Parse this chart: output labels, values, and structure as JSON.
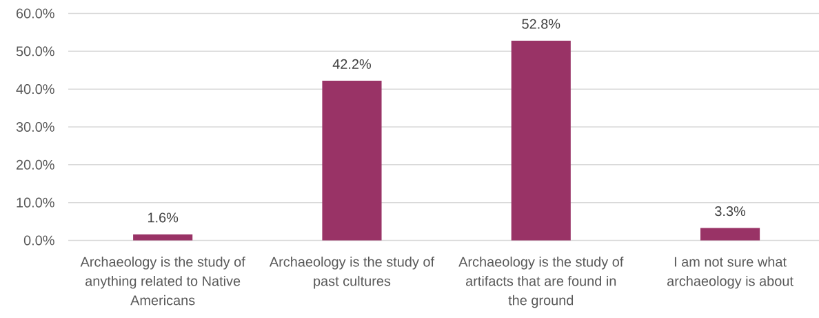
{
  "chart_data": {
    "type": "bar",
    "categories": [
      "Archaeology is the study of anything related to Native Americans",
      "Archaeology is the study of past cultures",
      "Archaeology is the study of artifacts that are found in the ground",
      "I am not sure what archaeology is about"
    ],
    "values": [
      1.6,
      42.2,
      52.8,
      3.3
    ],
    "value_labels": [
      "1.6%",
      "42.2%",
      "52.8%",
      "3.3%"
    ],
    "color": "#993366",
    "ylim": [
      0,
      60
    ],
    "yticks": [
      {
        "value": 0,
        "label": "0.0%"
      },
      {
        "value": 10,
        "label": "10.0%"
      },
      {
        "value": 20,
        "label": "20.0%"
      },
      {
        "value": 30,
        "label": "30.0%"
      },
      {
        "value": 40,
        "label": "40.0%"
      },
      {
        "value": 50,
        "label": "50.0%"
      },
      {
        "value": 60,
        "label": "60.0%"
      }
    ],
    "grid": "y"
  }
}
